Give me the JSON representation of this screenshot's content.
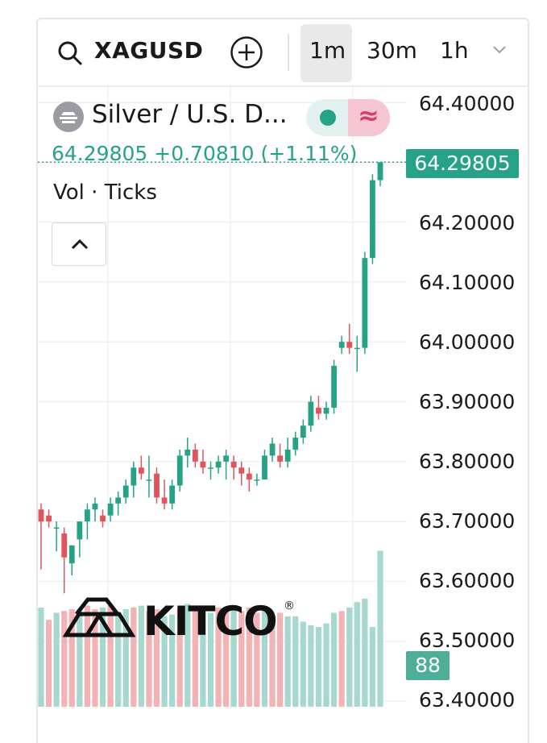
{
  "toolbar": {
    "search_icon": "search-icon",
    "symbol": "XAGUSD",
    "add_icon": "plus-circle-icon",
    "intervals": [
      "1m",
      "30m",
      "1h"
    ],
    "active_interval": "1m",
    "more_icon": "chevron-down-icon"
  },
  "legend": {
    "symbol_name": "Silver / U.S. D...",
    "last_price": "64.29805",
    "change": "+0.70810",
    "change_pct": "(+1.11%)",
    "market_status_icon": "market-open-dot-icon",
    "data_mode_icon": "approx-wave-icon",
    "volume_label": "Vol · Ticks"
  },
  "price_axis": {
    "labels": [
      "64.40000",
      "64.20000",
      "64.10000",
      "64.00000",
      "63.90000",
      "63.80000",
      "63.70000",
      "63.60000",
      "63.50000",
      "63.40000"
    ],
    "last_price_badge": "64.29805",
    "volume_badge": "88"
  },
  "watermark": {
    "text": "KITCO",
    "registered": "®"
  },
  "colors": {
    "up": "#26a387",
    "down": "#e0545b",
    "vol_up": "#a6d8d0",
    "vol_down": "#f3b3b4"
  },
  "chart_data": {
    "type": "candlestick",
    "symbol": "XAGUSD",
    "interval": "1m",
    "ylim": [
      63.4,
      64.42
    ],
    "candles": [
      [
        63.72,
        63.73,
        63.62,
        63.7
      ],
      [
        63.71,
        63.72,
        63.69,
        63.7
      ],
      [
        63.69,
        63.7,
        63.65,
        63.69
      ],
      [
        63.68,
        63.69,
        63.58,
        63.64
      ],
      [
        63.63,
        63.66,
        63.61,
        63.66
      ],
      [
        63.67,
        63.7,
        63.64,
        63.7
      ],
      [
        63.7,
        63.73,
        63.67,
        63.72
      ],
      [
        63.72,
        63.74,
        63.7,
        63.73
      ],
      [
        63.71,
        63.72,
        63.69,
        63.7
      ],
      [
        63.71,
        63.74,
        63.7,
        63.73
      ],
      [
        63.73,
        63.75,
        63.71,
        63.74
      ],
      [
        63.74,
        63.77,
        63.73,
        63.76
      ],
      [
        63.76,
        63.8,
        63.74,
        63.79
      ],
      [
        63.79,
        63.81,
        63.77,
        63.78
      ],
      [
        63.77,
        63.81,
        63.74,
        63.77
      ],
      [
        63.78,
        63.79,
        63.73,
        63.74
      ],
      [
        63.74,
        63.77,
        63.72,
        63.73
      ],
      [
        63.73,
        63.77,
        63.72,
        63.76
      ],
      [
        63.76,
        63.82,
        63.75,
        63.81
      ],
      [
        63.81,
        63.84,
        63.79,
        63.82
      ],
      [
        63.82,
        63.83,
        63.79,
        63.8
      ],
      [
        63.8,
        63.82,
        63.78,
        63.79
      ],
      [
        63.79,
        63.8,
        63.77,
        63.79
      ],
      [
        63.79,
        63.81,
        63.78,
        63.8
      ],
      [
        63.8,
        63.82,
        63.77,
        63.81
      ],
      [
        63.8,
        63.81,
        63.77,
        63.79
      ],
      [
        63.79,
        63.8,
        63.76,
        63.78
      ],
      [
        63.78,
        63.79,
        63.75,
        63.77
      ],
      [
        63.77,
        63.78,
        63.76,
        63.77
      ],
      [
        63.77,
        63.82,
        63.77,
        63.81
      ],
      [
        63.81,
        63.84,
        63.8,
        63.83
      ],
      [
        63.81,
        63.83,
        63.79,
        63.8
      ],
      [
        63.8,
        63.84,
        63.79,
        63.82
      ],
      [
        63.82,
        63.85,
        63.81,
        63.84
      ],
      [
        63.84,
        63.87,
        63.83,
        63.86
      ],
      [
        63.86,
        63.91,
        63.85,
        63.9
      ],
      [
        63.89,
        63.91,
        63.87,
        63.88
      ],
      [
        63.88,
        63.9,
        63.87,
        63.89
      ],
      [
        63.89,
        63.97,
        63.88,
        63.96
      ],
      [
        63.99,
        64.01,
        63.98,
        64.0
      ],
      [
        64.0,
        64.03,
        63.98,
        63.99
      ],
      [
        63.99,
        64.01,
        63.95,
        63.99
      ],
      [
        63.99,
        64.15,
        63.98,
        64.14
      ],
      [
        64.14,
        64.28,
        64.13,
        64.27
      ],
      [
        64.27,
        64.3,
        64.26,
        64.3
      ]
    ],
    "volumes": [
      [
        56,
        "up"
      ],
      [
        49,
        "down"
      ],
      [
        53,
        "up"
      ],
      [
        54,
        "down"
      ],
      [
        55,
        "down"
      ],
      [
        55,
        "up"
      ],
      [
        57,
        "down"
      ],
      [
        55,
        "down"
      ],
      [
        56,
        "up"
      ],
      [
        57,
        "down"
      ],
      [
        52,
        "up"
      ],
      [
        55,
        "up"
      ],
      [
        56,
        "down"
      ],
      [
        57,
        "up"
      ],
      [
        54,
        "down"
      ],
      [
        55,
        "down"
      ],
      [
        51,
        "up"
      ],
      [
        52,
        "up"
      ],
      [
        55,
        "down"
      ],
      [
        58,
        "up"
      ],
      [
        54,
        "down"
      ],
      [
        56,
        "up"
      ],
      [
        53,
        "up"
      ],
      [
        56,
        "down"
      ],
      [
        55,
        "down"
      ],
      [
        57,
        "up"
      ],
      [
        54,
        "down"
      ],
      [
        56,
        "down"
      ],
      [
        53,
        "down"
      ],
      [
        55,
        "up"
      ],
      [
        52,
        "down"
      ],
      [
        53,
        "down"
      ],
      [
        51,
        "up"
      ],
      [
        51,
        "up"
      ],
      [
        48,
        "up"
      ],
      [
        46,
        "up"
      ],
      [
        45,
        "up"
      ],
      [
        47,
        "up"
      ],
      [
        53,
        "up"
      ],
      [
        54,
        "down"
      ],
      [
        56,
        "up"
      ],
      [
        59,
        "up"
      ],
      [
        61,
        "up"
      ],
      [
        45,
        "up"
      ],
      [
        88,
        "up"
      ]
    ],
    "volume_ylim": [
      0,
      95
    ]
  }
}
